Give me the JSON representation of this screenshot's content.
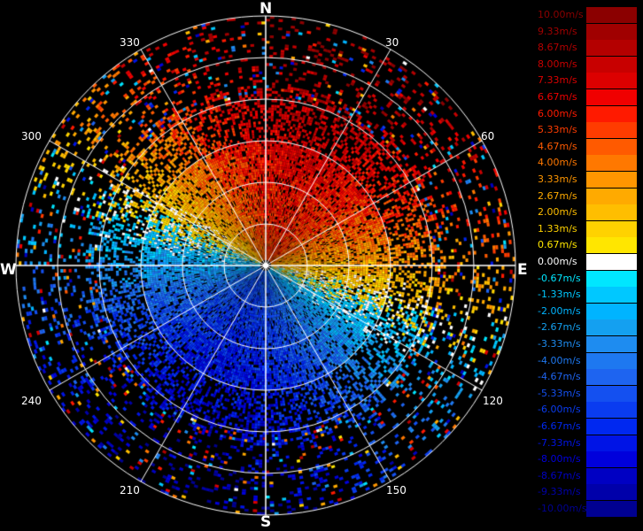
{
  "cardinals": {
    "north": "N",
    "south": "S",
    "east": "E",
    "west": "W"
  },
  "azimuth_labels": {
    "a30": "30",
    "a60": "60",
    "a120": "120",
    "a150": "150",
    "a210": "210",
    "a240": "240",
    "a300": "300",
    "a330": "330"
  },
  "legend": {
    "entries": [
      {
        "label": "10.00m/s",
        "color": "#8b0000"
      },
      {
        "label": "9.33m/s",
        "color": "#a00000"
      },
      {
        "label": "8.67m/s",
        "color": "#b40000"
      },
      {
        "label": "8.00m/s",
        "color": "#c80000"
      },
      {
        "label": "7.33m/s",
        "color": "#dc0000"
      },
      {
        "label": "6.67m/s",
        "color": "#f00000"
      },
      {
        "label": "6.00m/s",
        "color": "#ff1a00"
      },
      {
        "label": "5.33m/s",
        "color": "#ff3c00"
      },
      {
        "label": "4.67m/s",
        "color": "#ff5a00"
      },
      {
        "label": "4.00m/s",
        "color": "#ff7800"
      },
      {
        "label": "3.33m/s",
        "color": "#ff9600"
      },
      {
        "label": "2.67m/s",
        "color": "#ffaa00"
      },
      {
        "label": "2.00m/s",
        "color": "#ffbe00"
      },
      {
        "label": "1.33m/s",
        "color": "#ffd200"
      },
      {
        "label": "0.67m/s",
        "color": "#ffe600"
      },
      {
        "label": "0.00m/s",
        "color": "#ffffff"
      },
      {
        "label": "-0.67m/s",
        "color": "#00e6ff"
      },
      {
        "label": "-1.33m/s",
        "color": "#00c8ff"
      },
      {
        "label": "-2.00m/s",
        "color": "#00b4ff"
      },
      {
        "label": "-2.67m/s",
        "color": "#14a0f0"
      },
      {
        "label": "-3.33m/s",
        "color": "#1e8cf0"
      },
      {
        "label": "-4.00m/s",
        "color": "#1e78f0"
      },
      {
        "label": "-4.67m/s",
        "color": "#1e64f0"
      },
      {
        "label": "-5.33m/s",
        "color": "#1450f0"
      },
      {
        "label": "-6.00m/s",
        "color": "#0a3cf0"
      },
      {
        "label": "-6.67m/s",
        "color": "#0028f0"
      },
      {
        "label": "-7.33m/s",
        "color": "#0014e6"
      },
      {
        "label": "-8.00m/s",
        "color": "#0000dc"
      },
      {
        "label": "-8.67m/s",
        "color": "#0000c3"
      },
      {
        "label": "-9.33m/s",
        "color": "#0000aa"
      },
      {
        "label": "-10.00m/s",
        "color": "#000091"
      }
    ]
  }
}
